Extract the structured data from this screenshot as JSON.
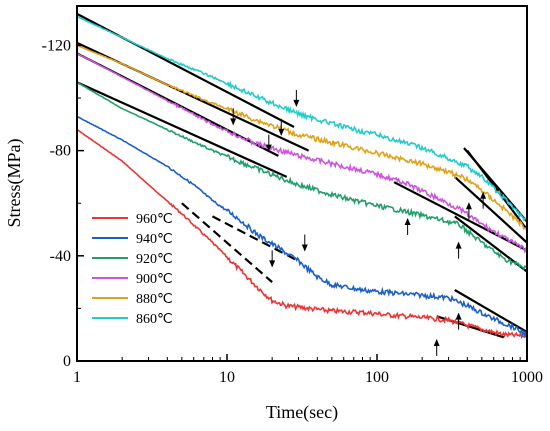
{
  "chart_data": {
    "type": "line",
    "xlabel": "Time(sec)",
    "ylabel": "Stress(MPa)",
    "x_scale": "log",
    "xlim": [
      1,
      1000
    ],
    "ylim": [
      0,
      -135
    ],
    "x_ticks": [
      1,
      10,
      100,
      1000
    ],
    "x_tick_labels": [
      "1",
      "10",
      "100",
      "1000"
    ],
    "y_ticks": [
      0,
      -40,
      -80,
      -120
    ],
    "y_tick_labels": [
      "0",
      "-40",
      "-80",
      "-120"
    ],
    "legend_position": "lower-left",
    "series": [
      {
        "name": "960℃",
        "color": "#ee3333",
        "points": [
          [
            1,
            -88
          ],
          [
            2,
            -76
          ],
          [
            3,
            -67
          ],
          [
            5,
            -56
          ],
          [
            8,
            -45
          ],
          [
            12,
            -35
          ],
          [
            16,
            -28
          ],
          [
            20,
            -23
          ],
          [
            25,
            -21
          ],
          [
            35,
            -20
          ],
          [
            50,
            -19
          ],
          [
            80,
            -18.5
          ],
          [
            120,
            -17.5
          ],
          [
            200,
            -16.5
          ],
          [
            300,
            -15.5
          ],
          [
            500,
            -12
          ],
          [
            700,
            -10
          ],
          [
            1000,
            -9.5
          ]
        ]
      },
      {
        "name": "940℃",
        "color": "#1a5fcc",
        "points": [
          [
            1,
            -93
          ],
          [
            2,
            -84
          ],
          [
            4,
            -74
          ],
          [
            6,
            -67
          ],
          [
            8,
            -61
          ],
          [
            12,
            -54
          ],
          [
            16,
            -48
          ],
          [
            22,
            -43
          ],
          [
            30,
            -38
          ],
          [
            40,
            -32
          ],
          [
            50,
            -29
          ],
          [
            80,
            -27
          ],
          [
            120,
            -26
          ],
          [
            200,
            -25
          ],
          [
            300,
            -24
          ],
          [
            400,
            -21
          ],
          [
            600,
            -16
          ],
          [
            800,
            -13
          ],
          [
            1000,
            -10
          ]
        ]
      },
      {
        "name": "920℃",
        "color": "#22a06b",
        "points": [
          [
            1,
            -106
          ],
          [
            2,
            -96
          ],
          [
            4,
            -88
          ],
          [
            8,
            -80
          ],
          [
            16,
            -73
          ],
          [
            30,
            -67
          ],
          [
            60,
            -62
          ],
          [
            100,
            -59
          ],
          [
            150,
            -57
          ],
          [
            250,
            -54
          ],
          [
            350,
            -52
          ],
          [
            500,
            -45
          ],
          [
            700,
            -39
          ],
          [
            1000,
            -35
          ]
        ]
      },
      {
        "name": "900℃",
        "color": "#cc55dd",
        "points": [
          [
            1,
            -117
          ],
          [
            2,
            -108
          ],
          [
            4,
            -99
          ],
          [
            8,
            -90
          ],
          [
            15,
            -83
          ],
          [
            30,
            -78
          ],
          [
            60,
            -74
          ],
          [
            100,
            -71
          ],
          [
            150,
            -68
          ],
          [
            250,
            -62
          ],
          [
            350,
            -58
          ],
          [
            500,
            -52
          ],
          [
            700,
            -47
          ],
          [
            1000,
            -42
          ]
        ]
      },
      {
        "name": "880℃",
        "color": "#e2a11a",
        "points": [
          [
            1,
            -120
          ],
          [
            2,
            -113
          ],
          [
            4,
            -105
          ],
          [
            8,
            -98
          ],
          [
            15,
            -92
          ],
          [
            30,
            -86
          ],
          [
            60,
            -82
          ],
          [
            100,
            -79
          ],
          [
            200,
            -75
          ],
          [
            300,
            -72
          ],
          [
            400,
            -69
          ],
          [
            500,
            -65
          ],
          [
            700,
            -58
          ],
          [
            1000,
            -50
          ]
        ]
      },
      {
        "name": "860℃",
        "color": "#22cccc",
        "points": [
          [
            1,
            -131
          ],
          [
            2,
            -123
          ],
          [
            4,
            -115
          ],
          [
            8,
            -108
          ],
          [
            15,
            -101
          ],
          [
            30,
            -94
          ],
          [
            60,
            -89
          ],
          [
            100,
            -86
          ],
          [
            200,
            -81
          ],
          [
            300,
            -77
          ],
          [
            400,
            -74
          ],
          [
            500,
            -70
          ],
          [
            700,
            -62
          ],
          [
            1000,
            -53
          ]
        ]
      }
    ],
    "fit_lines": [
      {
        "style": "solid",
        "from": [
          1,
          -132
        ],
        "to": [
          28,
          -89
        ]
      },
      {
        "style": "solid",
        "from": [
          1,
          -121
        ],
        "to": [
          35,
          -80
        ]
      },
      {
        "style": "solid",
        "from": [
          1,
          -117
        ],
        "to": [
          22,
          -78
        ]
      },
      {
        "style": "solid",
        "from": [
          1,
          -106
        ],
        "to": [
          25,
          -70
        ]
      },
      {
        "style": "dashed",
        "from": [
          5,
          -60
        ],
        "to": [
          20,
          -30
        ]
      },
      {
        "style": "dashed",
        "from": [
          8,
          -55
        ],
        "to": [
          30,
          -38
        ]
      },
      {
        "style": "solid",
        "from": [
          130,
          -68
        ],
        "to": [
          1000,
          -42
        ]
      },
      {
        "style": "solid",
        "from": [
          330,
          -55
        ],
        "to": [
          1000,
          -34
        ]
      },
      {
        "style": "solid",
        "from": [
          380,
          -81
        ],
        "to": [
          1000,
          -53
        ]
      },
      {
        "style": "solid",
        "from": [
          330,
          -70
        ],
        "to": [
          1000,
          -45
        ]
      },
      {
        "style": "solid",
        "from": [
          400,
          -80
        ],
        "to": [
          1000,
          -50
        ]
      },
      {
        "style": "solid",
        "from": [
          250,
          -17
        ],
        "to": [
          700,
          -9
        ]
      },
      {
        "style": "solid",
        "from": [
          330,
          -27
        ],
        "to": [
          1000,
          -11
        ]
      }
    ],
    "markers": [
      {
        "type": "arrow-down",
        "at": [
          29,
          -97
        ]
      },
      {
        "type": "arrow-down",
        "at": [
          11,
          -90
        ]
      },
      {
        "type": "arrow-down",
        "at": [
          23,
          -86
        ]
      },
      {
        "type": "arrow-down",
        "at": [
          19,
          -80
        ]
      },
      {
        "type": "arrow-down",
        "at": [
          33,
          -42
        ]
      },
      {
        "type": "arrow-down",
        "at": [
          20,
          -36
        ]
      },
      {
        "type": "arrow-up",
        "at": [
          160,
          -54
        ]
      },
      {
        "type": "arrow-up",
        "at": [
          350,
          -45
        ]
      },
      {
        "type": "arrow-up",
        "at": [
          410,
          -60
        ]
      },
      {
        "type": "arrow-up",
        "at": [
          510,
          -64
        ]
      },
      {
        "type": "arrow-up",
        "at": [
          350,
          -18
        ]
      },
      {
        "type": "arrow-up",
        "at": [
          250,
          -8
        ]
      }
    ]
  }
}
